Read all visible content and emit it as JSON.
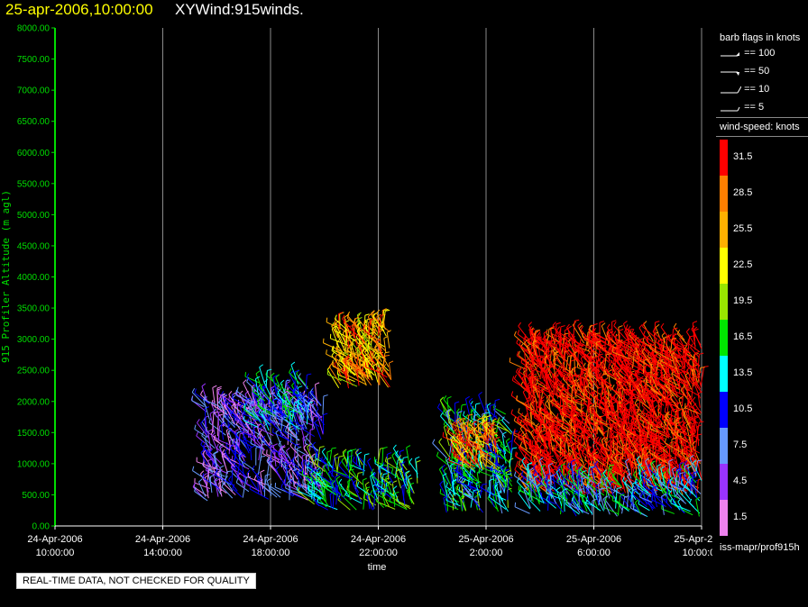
{
  "title": {
    "date": "25-apr-2006,10:00:00",
    "name": "XYWind:915winds."
  },
  "legend": {
    "flags_heading": "barb flags in knots",
    "flags": [
      "== 100",
      "== 50",
      "== 10",
      "== 5"
    ],
    "speed_heading": "wind-speed: knots",
    "speed_bins": [
      {
        "label": "31.5",
        "color": "#ff0000"
      },
      {
        "label": "28.5",
        "color": "#ff7f00"
      },
      {
        "label": "25.5",
        "color": "#ffb000"
      },
      {
        "label": "22.5",
        "color": "#ffff00"
      },
      {
        "label": "19.5",
        "color": "#99e600"
      },
      {
        "label": "16.5",
        "color": "#00e600"
      },
      {
        "label": "13.5",
        "color": "#00ffff"
      },
      {
        "label": "10.5",
        "color": "#0000ff"
      },
      {
        "label": "7.5",
        "color": "#6699ff"
      },
      {
        "label": "4.5",
        "color": "#9933ff"
      },
      {
        "label": "1.5",
        "color": "#ee82ee"
      }
    ],
    "source": "iss-mapr/prof915h"
  },
  "notice": "REAL-TIME DATA, NOT CHECKED FOR QUALITY",
  "chart_data": {
    "type": "scatter",
    "xlabel": "time",
    "ylabel": "915 Profiler Altitude (m agl)",
    "ylim": [
      0,
      8000
    ],
    "grid": "vertical lines at major time ticks",
    "axis_color": "#00dd00",
    "y_ticks": [
      "0.00",
      "500.00",
      "1000.00",
      "1500.00",
      "2000.00",
      "2500.00",
      "3000.00",
      "3500.00",
      "4000.00",
      "4500.00",
      "5000.00",
      "5500.00",
      "6000.00",
      "6500.00",
      "7000.00",
      "7500.00",
      "8000.00"
    ],
    "x_ticks": [
      {
        "date": "24-Apr-2006",
        "time": "10:00:00"
      },
      {
        "date": "24-Apr-2006",
        "time": "14:00:00"
      },
      {
        "date": "24-Apr-2006",
        "time": "18:00:00"
      },
      {
        "date": "24-Apr-2006",
        "time": "22:00:00"
      },
      {
        "date": "25-Apr-2006",
        "time": "2:00:00"
      },
      {
        "date": "25-Apr-2006",
        "time": "6:00:00"
      },
      {
        "date": "25-Apr-2006",
        "time": "10:00:00"
      }
    ],
    "x_range_hours": [
      0,
      24
    ],
    "wind_clusters": [
      {
        "period": "24-Apr 15:30-20:00",
        "t_start": 5.5,
        "t_end": 10.0,
        "alt_min": 400,
        "alt_max": 2000,
        "dominant_speed_knots": 6
      },
      {
        "period": "24-Apr 17:30-19:30 upper",
        "t_start": 7.5,
        "t_end": 9.5,
        "alt_min": 1500,
        "alt_max": 2300,
        "dominant_speed_knots": 12
      },
      {
        "period": "24-Apr 19:30-23:30",
        "t_start": 9.5,
        "t_end": 13.5,
        "alt_min": 250,
        "alt_max": 1000,
        "dominant_speed_knots": 15
      },
      {
        "period": "24-Apr 20:30-22:30 upper",
        "t_start": 10.5,
        "t_end": 12.5,
        "alt_min": 2200,
        "alt_max": 3200,
        "dominant_speed_knots": 26
      },
      {
        "period": "25-Apr 0:30-3:00",
        "t_start": 14.5,
        "t_end": 17.0,
        "alt_min": 200,
        "alt_max": 1800,
        "dominant_speed_knots": 14
      },
      {
        "period": "25-Apr 1:00-2:30 mid",
        "t_start": 15.0,
        "t_end": 16.5,
        "alt_min": 900,
        "alt_max": 1500,
        "dominant_speed_knots": 28
      },
      {
        "period": "25-Apr 3:30-10:00",
        "t_start": 17.5,
        "t_end": 24.0,
        "alt_min": 500,
        "alt_max": 3000,
        "dominant_speed_knots": 33
      },
      {
        "period": "25-Apr 3:30-10:00 low",
        "t_start": 17.5,
        "t_end": 24.0,
        "alt_min": 150,
        "alt_max": 800,
        "dominant_speed_knots": 12
      }
    ]
  }
}
